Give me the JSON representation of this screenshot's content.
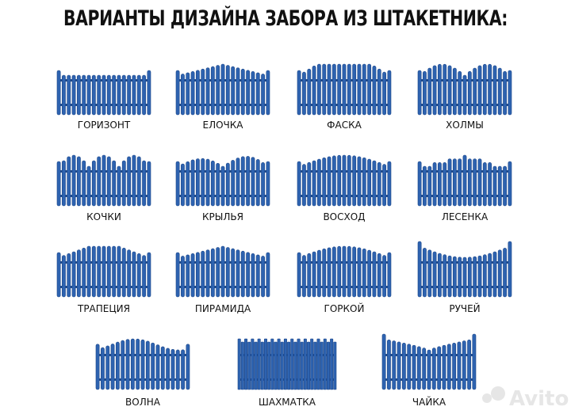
{
  "title": "ВАРИАНТЫ ДИЗАЙНА ЗАБОРА ИЗ ШТАКЕТНИКА:",
  "items": [
    "ГОРИЗОНТ",
    "ЕЛОЧКА",
    "ФАСКА",
    "ХОЛМЫ",
    "КОЧКИ",
    "КРЫЛЬЯ",
    "ВОСХОД",
    "ЛЕСЕНКА",
    "ТРАПЕЦИЯ",
    "ПИРАМИДА",
    "ГОРКОЙ",
    "РУЧЕЙ",
    "ВОЛНА",
    "ШАХМАТКА",
    "ЧАЙКА"
  ],
  "watermark": "Avito"
}
